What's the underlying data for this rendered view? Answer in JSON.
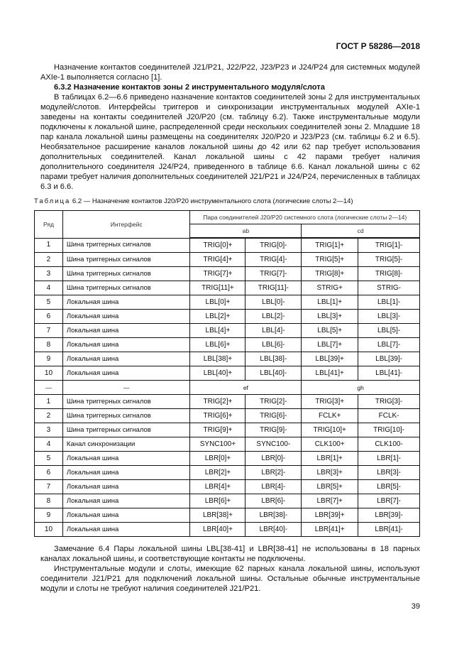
{
  "header": "ГОСТ Р 58286—2018",
  "intro": "Назначение контактов соединителей J21/P21, J22/P22, J23/P23 и J24/P24 для системных модулей AXIe-1 выполняется согласно [1].",
  "section_title": "6.3.2 Назначение контактов зоны 2 инструментального модуля/слота",
  "section_text": "В таблицах 6.2—6.6 приведено назначение контактов соединителей зоны 2 для инструментальных модулей/слотов. Интерфейсы триггеров и синхронизации инструментальных модулей AXIe-1 заведены на контакты соединителей J20/P20 (см. таблицу 6.2). Также инструментальные модули подключены к локальной шине, распределенной среди нескольких соединителей зоны 2. Младшие 18 пар канала локальной шины размещены на соединителях J20/P20 и J23/P23 (см. таблицы 6.2 и 6.5). Необязательное расширение каналов локальной шины до 42 или 62 пар требует использования дополнительных соединителей. Канал локальной шины с 42 парами требует наличия дополнительного соединителя J24/P24, приведенного в таблице 6.6. Канал локальной шины с 62 парами требует наличия дополнительных соединителей J21/P21 и J24/P24, перечисленных в таблицах 6.3 и 6.6.",
  "table_caption_label": "Таблица",
  "table_caption": "6.2 — Назначение контактов J20/P20 инструментального слота (логические слоты 2—14)",
  "table": {
    "col_row": "Ряд",
    "col_interface": "Интерфейс",
    "col_group": "Пара соединителей J20/P20 системного слота (логические слоты 2—14)",
    "pair1": "ab",
    "pair2": "cd",
    "rows1": [
      [
        "1",
        "Шина триггерных сигналов",
        "TRIG[0]+",
        "TRIG[0]-",
        "TRIG[1]+",
        "TRIG[1]-"
      ],
      [
        "2",
        "Шина триггерных сигналов",
        "TRIG[4]+",
        "TRIG[4]-",
        "TRIG[5]+",
        "TRIG[5]-"
      ],
      [
        "3",
        "Шина триггерных сигналов",
        "TRIG[7]+",
        "TRIG[7]-",
        "TRIG[8]+",
        "TRIG[8]-"
      ],
      [
        "4",
        "Шина триггерных сигналов",
        "TRIG[11]+",
        "TRIG[11]-",
        "STRIG+",
        "STRIG-"
      ],
      [
        "5",
        "Локальная шина",
        "LBL[0]+",
        "LBL[0]-",
        "LBL[1]+",
        "LBL[1]-"
      ],
      [
        "6",
        "Локальная шина",
        "LBL[2]+",
        "LBL[2]-",
        "LBL[3]+",
        "LBL[3]-"
      ],
      [
        "7",
        "Локальная шина",
        "LBL[4]+",
        "LBL[4]-",
        "LBL[5]+",
        "LBL[5]-"
      ],
      [
        "8",
        "Локальная шина",
        "LBL[6]+",
        "LBL[6]-",
        "LBL[7]+",
        "LBL[7]-"
      ],
      [
        "9",
        "Локальная шина",
        "LBL[38]+",
        "LBL[38]-",
        "LBL[39]+",
        "LBL[39]-"
      ],
      [
        "10",
        "Локальная шина",
        "LBL[40]+",
        "LBL[40]-",
        "LBL[41]+",
        "LBL[41]-"
      ]
    ],
    "sep": [
      "—",
      "—",
      "ef",
      "gh"
    ],
    "rows2": [
      [
        "1",
        "Шина триггерных сигналов",
        "TRIG[2]+",
        "TRIG[2]-",
        "TRIG[3]+",
        "TRIG[3]-"
      ],
      [
        "2",
        "Шина триггерных сигналов",
        "TRIG[6]+",
        "TRIG[6]-",
        "FCLK+",
        "FCLK-"
      ],
      [
        "3",
        "Шина триггерных сигналов",
        "TRIG[9]+",
        "TRIG[9]-",
        "TRIG[10]+",
        "TRIG[10]-"
      ],
      [
        "4",
        "Канал синхронизации",
        "SYNC100+",
        "SYNC100-",
        "CLK100+",
        "CLK100-"
      ],
      [
        "5",
        "Локальная шина",
        "LBR[0]+",
        "LBR[0]-",
        "LBR[1]+",
        "LBR[1]-"
      ],
      [
        "6",
        "Локальная шина",
        "LBR[2]+",
        "LBR[2]-",
        "LBR[3]+",
        "LBR[3]-"
      ],
      [
        "7",
        "Локальная шина",
        "LBR[4]+",
        "LBR[4]-",
        "LBR[5]+",
        "LBR[5]-"
      ],
      [
        "8",
        "Локальная шина",
        "LBR[6]+",
        "LBR[6]-",
        "LBR[7]+",
        "LBR[7]-"
      ],
      [
        "9",
        "Локальная шина",
        "LBR[38]+",
        "LBR[38]-",
        "LBR[39]+",
        "LBR[39]-"
      ],
      [
        "10",
        "Локальная шина",
        "LBR[40]+",
        "LBR[40]-",
        "LBR[41]+",
        "LBR[41]-"
      ]
    ]
  },
  "note": "Замечание 6.4 Пары локальной шины LBL[38-41] и LBR[38-41] не использованы в 18 парных каналах локальной шины, и соответствующие контакты не подключены.",
  "final": "Инструментальные модули и слоты, имеющие 62 парных канала локальной шины, используют соединители J21/P21 для подключений локальной шины. Остальные обычные инструментальные модули и слоты не требуют наличия соединителей J21/P21.",
  "page_number": "39"
}
